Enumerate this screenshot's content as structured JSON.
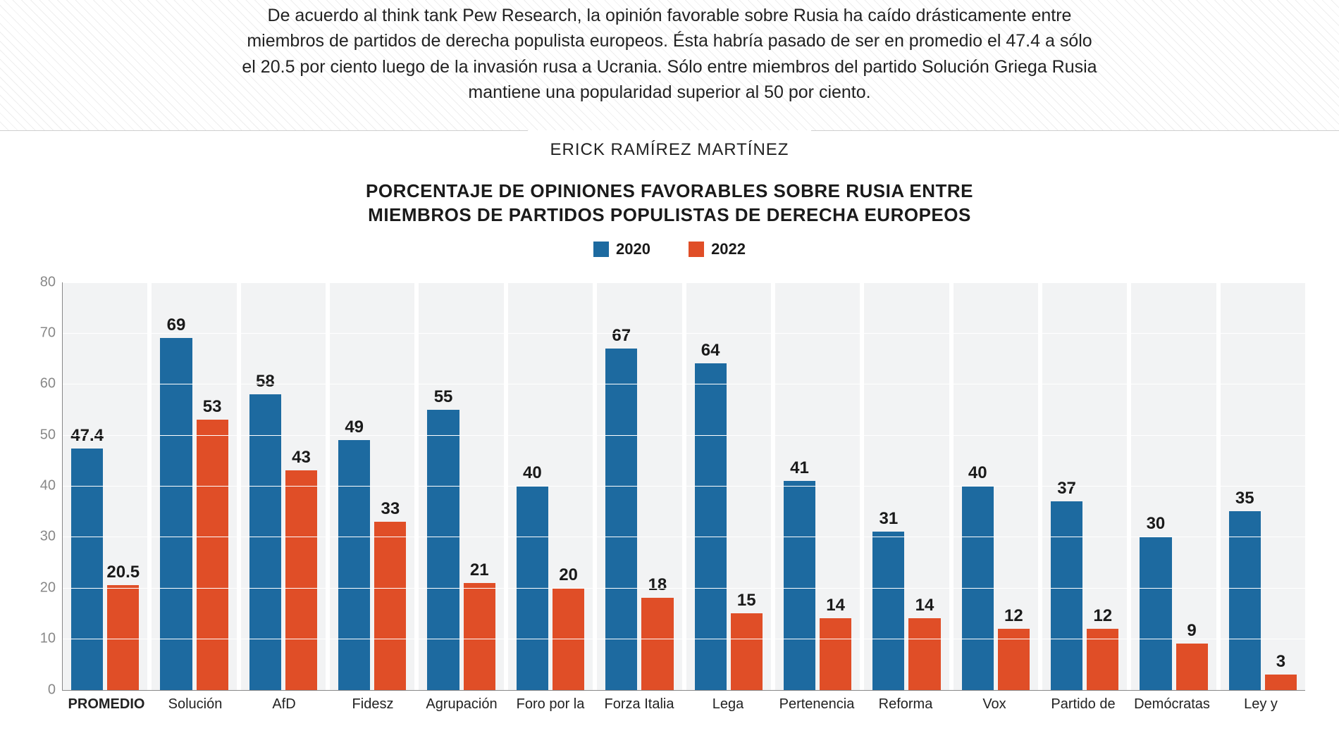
{
  "intro_text": "De acuerdo al think tank Pew Research, la opinión favorable sobre Rusia ha caído drásticamente entre miembros de partidos de derecha populista europeos. Ésta habría pasado de ser en promedio el 47.4 a sólo el 20.5 por ciento luego de la invasión rusa a Ucrania. Sólo entre miembros del partido Solución Griega Rusia mantiene una popularidad superior al 50 por ciento.",
  "byline": "ERICK RAMÍREZ MARTÍNEZ",
  "chart": {
    "type": "bar",
    "title_line1": "PORCENTAJE DE OPINIONES FAVORABLES SOBRE RUSIA ENTRE",
    "title_line2": "MIEMBROS DE PARTIDOS POPULISTAS DE DERECHA EUROPEOS",
    "series": [
      {
        "name": "2020",
        "color": "#1d6aa0"
      },
      {
        "name": "2022",
        "color": "#e04e27"
      }
    ],
    "y_axis": {
      "min": 0,
      "max": 80,
      "step": 10
    },
    "plot_background": "#f2f3f4",
    "gridline_color": "#ffffff",
    "categories": [
      {
        "label": "PROMEDIO",
        "bold": true,
        "v2020": 47.4,
        "v2022": 20.5
      },
      {
        "label": "Solución",
        "bold": false,
        "v2020": 69,
        "v2022": 53
      },
      {
        "label": "AfD",
        "bold": false,
        "v2020": 58,
        "v2022": 43
      },
      {
        "label": "Fidesz",
        "bold": false,
        "v2020": 49,
        "v2022": 33
      },
      {
        "label": "Agrupación",
        "bold": false,
        "v2020": 55,
        "v2022": 21
      },
      {
        "label": "Foro por la",
        "bold": false,
        "v2020": 40,
        "v2022": 20
      },
      {
        "label": "Forza Italia",
        "bold": false,
        "v2020": 67,
        "v2022": 18
      },
      {
        "label": "Lega",
        "bold": false,
        "v2020": 64,
        "v2022": 15
      },
      {
        "label": "Pertenencia",
        "bold": false,
        "v2020": 41,
        "v2022": 14
      },
      {
        "label": "Reforma",
        "bold": false,
        "v2020": 31,
        "v2022": 14
      },
      {
        "label": "Vox",
        "bold": false,
        "v2020": 40,
        "v2022": 12
      },
      {
        "label": "Partido de",
        "bold": false,
        "v2020": 37,
        "v2022": 12
      },
      {
        "label": "Demócratas",
        "bold": false,
        "v2020": 30,
        "v2022": 9
      },
      {
        "label": "Ley y",
        "bold": false,
        "v2020": 35,
        "v2022": 3
      }
    ]
  }
}
